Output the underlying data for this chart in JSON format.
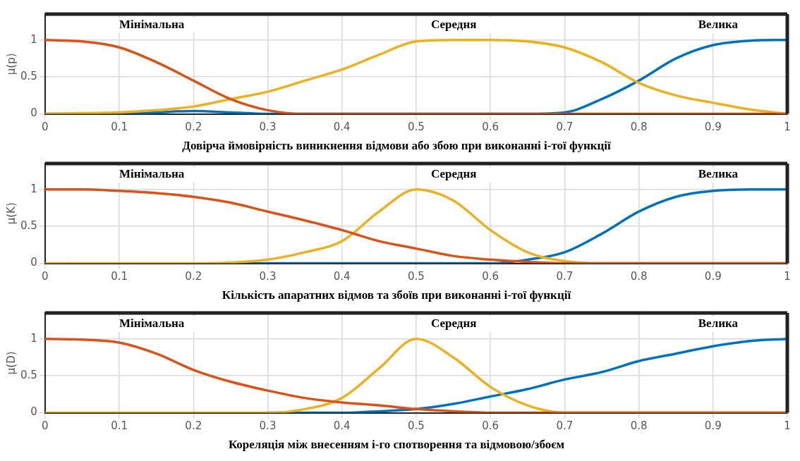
{
  "chart_data": [
    {
      "type": "line",
      "xlabel": "Довірча ймовірність виникнення відмови або збою при виконанні і-тої функції",
      "ylabel": "μ(p)",
      "x": [
        0,
        0.05,
        0.1,
        0.15,
        0.2,
        0.25,
        0.3,
        0.35,
        0.4,
        0.45,
        0.5,
        0.55,
        0.6,
        0.65,
        0.7,
        0.75,
        0.8,
        0.85,
        0.9,
        0.95,
        1
      ],
      "xlim": [
        0,
        1
      ],
      "ylim": [
        0,
        1.35
      ],
      "xticks": [
        0,
        0.1,
        0.2,
        0.3,
        0.4,
        0.5,
        0.6,
        0.7,
        0.8,
        0.9,
        1
      ],
      "yticks": [
        0,
        0.5,
        1
      ],
      "grid": true,
      "marker": "none",
      "line_style": "solid",
      "series": [
        {
          "name": "Мінімальна",
          "color": "#d95319",
          "values": [
            1,
            0.98,
            0.9,
            0.7,
            0.45,
            0.2,
            0.05,
            0,
            0,
            0,
            0,
            0,
            0,
            0,
            0,
            0,
            0,
            0,
            0,
            0,
            0
          ]
        },
        {
          "name": "Середня",
          "color": "#edb120",
          "values": [
            0,
            0.01,
            0.02,
            0.05,
            0.1,
            0.2,
            0.3,
            0.45,
            0.6,
            0.8,
            0.98,
            1,
            1,
            0.98,
            0.9,
            0.7,
            0.42,
            0.25,
            0.15,
            0.06,
            0
          ]
        },
        {
          "name": "Велика",
          "color": "#0072bd",
          "values": [
            0,
            0,
            0,
            0.02,
            0.04,
            0.02,
            0,
            0,
            0,
            0,
            0,
            0,
            0,
            0,
            0.02,
            0.2,
            0.45,
            0.75,
            0.93,
            0.99,
            1
          ]
        }
      ]
    },
    {
      "type": "line",
      "xlabel": "Кількість апаратних відмов та збоїв при виконанні і-тої функції",
      "ylabel": "μ(K)",
      "x": [
        0,
        0.05,
        0.1,
        0.15,
        0.2,
        0.25,
        0.3,
        0.35,
        0.4,
        0.45,
        0.5,
        0.55,
        0.6,
        0.65,
        0.7,
        0.75,
        0.8,
        0.85,
        0.9,
        0.95,
        1
      ],
      "xlim": [
        0,
        1
      ],
      "ylim": [
        0,
        1.35
      ],
      "xticks": [
        0,
        0.1,
        0.2,
        0.3,
        0.4,
        0.5,
        0.6,
        0.7,
        0.8,
        0.9,
        1
      ],
      "yticks": [
        0,
        0.5,
        1
      ],
      "grid": true,
      "marker": "none",
      "line_style": "solid",
      "series": [
        {
          "name": "Мінімальна",
          "color": "#d95319",
          "values": [
            1,
            1,
            0.98,
            0.95,
            0.9,
            0.82,
            0.7,
            0.58,
            0.45,
            0.3,
            0.2,
            0.1,
            0.05,
            0.02,
            0,
            0,
            0,
            0,
            0,
            0,
            0
          ]
        },
        {
          "name": "Середня",
          "color": "#edb120",
          "values": [
            0,
            0,
            0,
            0,
            0,
            0.01,
            0.05,
            0.15,
            0.3,
            0.7,
            1,
            0.85,
            0.45,
            0.15,
            0.03,
            0,
            0,
            0,
            0,
            0,
            0
          ]
        },
        {
          "name": "Велика",
          "color": "#0072bd",
          "values": [
            null,
            null,
            null,
            null,
            null,
            0,
            0,
            0,
            0,
            0,
            0,
            0,
            0,
            0.05,
            0.15,
            0.4,
            0.7,
            0.9,
            0.98,
            1,
            1
          ]
        }
      ]
    },
    {
      "type": "line",
      "xlabel": "Кореляція між внесенням і-го спотворення та відмовою/збоєм",
      "ylabel": "μ(D)",
      "x": [
        0,
        0.05,
        0.1,
        0.15,
        0.2,
        0.25,
        0.3,
        0.35,
        0.4,
        0.45,
        0.5,
        0.55,
        0.6,
        0.65,
        0.7,
        0.75,
        0.8,
        0.85,
        0.9,
        0.95,
        1
      ],
      "xlim": [
        0,
        1
      ],
      "ylim": [
        0,
        1.35
      ],
      "xticks": [
        0,
        0.1,
        0.2,
        0.3,
        0.4,
        0.5,
        0.6,
        0.7,
        0.8,
        0.9,
        1
      ],
      "yticks": [
        0,
        0.5,
        1
      ],
      "grid": true,
      "marker": "none",
      "line_style": "solid",
      "series": [
        {
          "name": "Мінімальна",
          "color": "#d95319",
          "values": [
            1,
            0.99,
            0.95,
            0.8,
            0.58,
            0.42,
            0.3,
            0.2,
            0.14,
            0.1,
            0.05,
            0.02,
            0,
            0,
            0,
            0,
            0,
            0,
            0,
            0,
            0
          ]
        },
        {
          "name": "Середня",
          "color": "#edb120",
          "values": [
            0,
            0,
            0,
            0,
            0,
            0,
            0,
            0.05,
            0.2,
            0.6,
            1,
            0.75,
            0.35,
            0.1,
            0,
            0,
            0,
            0,
            0,
            0,
            0
          ]
        },
        {
          "name": "Велика",
          "color": "#0072bd",
          "values": [
            null,
            null,
            null,
            null,
            null,
            null,
            0,
            0,
            0,
            0.02,
            0.05,
            0.12,
            0.22,
            0.32,
            0.45,
            0.55,
            0.7,
            0.8,
            0.9,
            0.97,
            1
          ]
        }
      ]
    }
  ]
}
